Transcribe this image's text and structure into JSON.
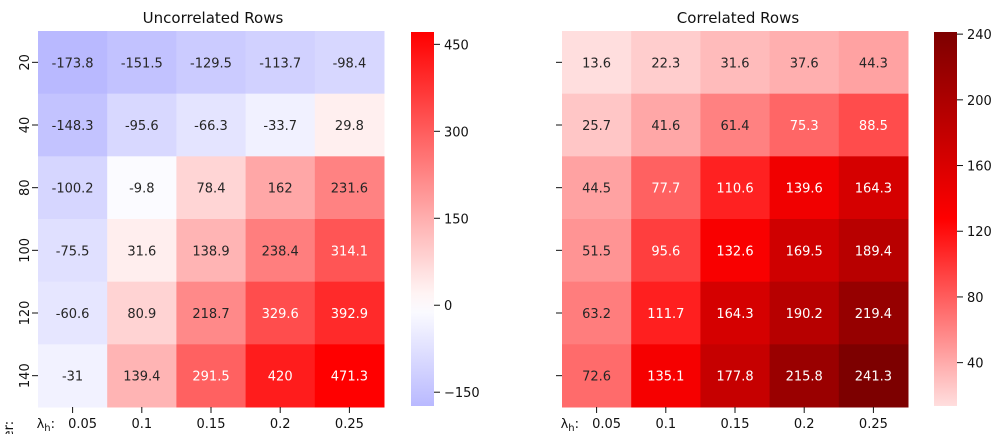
{
  "chart_data": [
    {
      "type": "heatmap",
      "title": "Uncorrelated Rows",
      "ylabel": "iter:",
      "xlabel_prefix": "λh:",
      "x_categories": [
        "0.05",
        "0.1",
        "0.15",
        "0.2",
        "0.25"
      ],
      "y_categories": [
        "20",
        "40",
        "80",
        "100",
        "120",
        "140"
      ],
      "values": [
        [
          -173.8,
          -151.5,
          -129.5,
          -113.7,
          -98.4
        ],
        [
          -148.3,
          -95.6,
          -66.3,
          -33.7,
          29.8
        ],
        [
          -100.2,
          -9.8,
          78.4,
          162,
          231.6
        ],
        [
          -75.5,
          31.6,
          138.9,
          238.4,
          314.1
        ],
        [
          -60.6,
          80.9,
          218.7,
          329.6,
          392.9
        ],
        [
          -31,
          139.4,
          291.5,
          420,
          471.3
        ]
      ],
      "colormap": "bwr",
      "vmin": -173.8,
      "vmax": 471.3,
      "center": 0,
      "colorbar_ticks": [
        "450",
        "300",
        "150",
        "0",
        "−150"
      ],
      "colorbar_tick_values": [
        450,
        300,
        150,
        0,
        -150
      ]
    },
    {
      "type": "heatmap",
      "title": "Correlated Rows",
      "xlabel_prefix": "λh:",
      "x_categories": [
        "0.05",
        "0.1",
        "0.15",
        "0.2",
        "0.25"
      ],
      "y_categories": [
        "20",
        "40",
        "80",
        "100",
        "120",
        "140"
      ],
      "values": [
        [
          13.6,
          22.3,
          31.6,
          37.6,
          44.3
        ],
        [
          25.7,
          41.6,
          61.4,
          75.3,
          88.5
        ],
        [
          44.5,
          77.7,
          110.6,
          139.6,
          164.3
        ],
        [
          51.5,
          95.6,
          132.6,
          169.5,
          189.4
        ],
        [
          63.2,
          111.7,
          164.3,
          190.2,
          219.4
        ],
        [
          72.6,
          135.1,
          177.8,
          215.8,
          241.3
        ]
      ],
      "colormap": "seismic-upper",
      "vmin": 13.6,
      "vmax": 241.3,
      "colorbar_ticks": [
        "240",
        "200",
        "160",
        "120",
        "80",
        "40"
      ],
      "colorbar_tick_values": [
        240,
        200,
        160,
        120,
        80,
        40
      ]
    }
  ]
}
